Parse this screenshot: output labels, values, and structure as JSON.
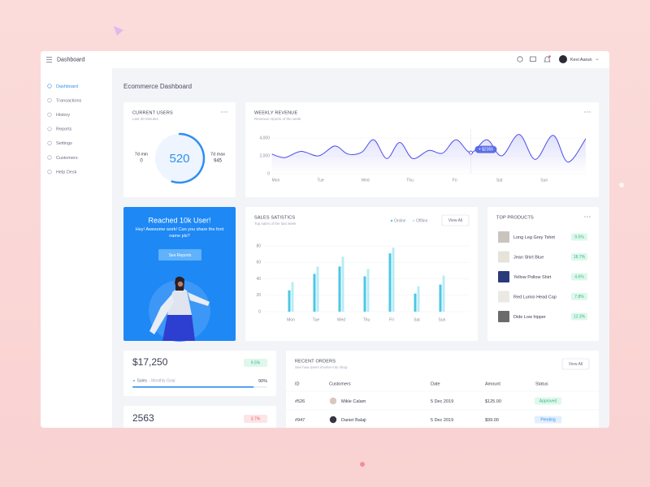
{
  "header": {
    "title": "Dashboard",
    "user": "Kevi Aarun"
  },
  "sidebar": [
    "Dashboard",
    "Transactions",
    "History",
    "Reports",
    "Settings",
    "Customers",
    "Help Desk"
  ],
  "page_title": "Ecommerce Dashboard",
  "current_users": {
    "title": "CURRENT USERS",
    "subtitle": "Last 30 Minutes",
    "value": 520,
    "min_label": "7d min",
    "min": 0,
    "max_label": "7d max",
    "max": 945
  },
  "weekly_revenue": {
    "type": "line",
    "title": "WEEKLY REVENUE",
    "subtitle": "Revenue reports of the week",
    "x": [
      -0.09,
      0.2,
      0.56,
      0.96,
      1.32,
      1.61,
      1.92,
      2.19,
      2.48,
      2.77,
      3.06,
      3.42,
      3.73,
      4.03,
      4.36,
      4.72,
      5.05,
      5.44,
      5.8,
      6.2,
      6.53,
      6.93
    ],
    "values": [
      2200,
      1800,
      2500,
      2000,
      3100,
      2200,
      2400,
      3800,
      1700,
      3500,
      1700,
      2600,
      2300,
      3800,
      2356,
      3800,
      2000,
      4400,
      1600,
      4300,
      1300,
      3900
    ],
    "color": "#4a4de8",
    "xlim": [
      -0.1,
      6.95
    ],
    "xticks": [
      {
        "value": 0,
        "label": "Mon"
      },
      {
        "value": 1,
        "label": "Tue"
      },
      {
        "value": 2,
        "label": "Wed"
      },
      {
        "value": 3,
        "label": "Thu"
      },
      {
        "value": 4,
        "label": "Fri"
      },
      {
        "value": 5,
        "label": "Sat"
      },
      {
        "value": 6,
        "label": "Sun"
      }
    ],
    "ylim": [
      0,
      5000
    ],
    "yticks": [
      0,
      {
        "value": 2000,
        "label": "2,000"
      },
      {
        "value": 4000,
        "label": "4,000"
      }
    ],
    "annotation": {
      "text": "+ $2356",
      "x": 4.36,
      "y": 2356
    }
  },
  "promo": {
    "title": "Reached 10k User!",
    "text": "Hey! Awesome work! Can you share the font name pls?",
    "button": "See Reports"
  },
  "sales_statistics": {
    "type": "bar",
    "title": "SALES SATISTICS",
    "subtitle": "Top sales of the last week",
    "button": "View All",
    "categories": [
      "Mon",
      "Tue",
      "Wed",
      "Thu",
      "Fri",
      "Sat",
      "Sun"
    ],
    "series": [
      {
        "name": "Online",
        "color": "#4cc7e6",
        "values": [
          26,
          46,
          55,
          43,
          71,
          22,
          33
        ]
      },
      {
        "name": "Offline",
        "color": "#b8ecf7",
        "values": [
          36,
          55,
          67,
          52,
          78,
          31,
          44
        ]
      }
    ],
    "ylim": [
      0,
      85
    ],
    "yticks": [
      0,
      20,
      40,
      60,
      80
    ],
    "grid": true
  },
  "top_products": {
    "title": "TOP PRODUCTS",
    "items": [
      {
        "name": "Long Leg Grey Tshirt",
        "change": "9.5%"
      },
      {
        "name": "Jean Shirt Blue",
        "change": "18.7%"
      },
      {
        "name": "Yellow Pollow Shirt",
        "change": "4.6%"
      },
      {
        "name": "Red Lumio Head Cap",
        "change": "7.8%"
      },
      {
        "name": "Dide Low hipper",
        "change": "12.3%"
      }
    ]
  },
  "sales_card": {
    "value": "$17,250",
    "change": "9.5%",
    "label": "Sales",
    "sublabel": "- Monthly Goal",
    "progress": {
      "value": 90,
      "label": "90%"
    }
  },
  "users_card": {
    "value": "2563",
    "change": "3.7%"
  },
  "recent_orders": {
    "title": "RECENT ORDERS",
    "subtitle": "See how users involve into shop",
    "button": "View All",
    "columns": [
      "ID",
      "Customers",
      "Date",
      "Amount",
      "Status"
    ],
    "rows": [
      [
        "#526",
        "Mikle Calam",
        "5 Dec 2019",
        "$125.00",
        "Approved"
      ],
      [
        "#947",
        "Daniel Balaji",
        "5 Dec 2019",
        "$99.00",
        "Pending"
      ]
    ]
  }
}
